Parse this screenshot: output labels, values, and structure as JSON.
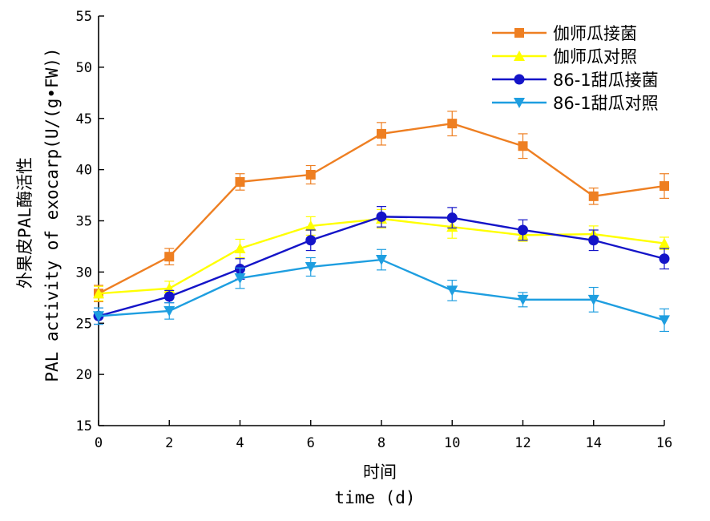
{
  "chart_data": {
    "type": "line",
    "xlabel_cn": "时间",
    "xlabel_en": "time (d)",
    "ylabel_cn": "外果皮PAL酶活性",
    "ylabel_en": "PAL activity of exocarp(U/(g•FW))",
    "x": [
      0,
      2,
      4,
      6,
      8,
      10,
      12,
      14,
      16
    ],
    "x_ticks": [
      0,
      2,
      4,
      6,
      8,
      10,
      12,
      14,
      16
    ],
    "y_ticks": [
      15,
      20,
      25,
      30,
      35,
      40,
      45,
      50,
      55
    ],
    "xlim": [
      0,
      16
    ],
    "ylim": [
      15,
      55
    ],
    "grid": false,
    "legend_position": "top-right",
    "series": [
      {
        "name": "伽师瓜接菌",
        "color": "#EE7F22",
        "marker": "square",
        "values": [
          27.9,
          31.5,
          38.8,
          39.5,
          43.5,
          44.5,
          42.3,
          37.4,
          38.4
        ],
        "errors": [
          0.8,
          0.8,
          0.8,
          0.9,
          1.1,
          1.2,
          1.2,
          0.8,
          1.2
        ]
      },
      {
        "name": "伽师瓜对照",
        "color": "#FFFF00",
        "marker": "triangle-up",
        "values": [
          27.9,
          28.4,
          32.3,
          34.5,
          35.2,
          34.4,
          33.6,
          33.7,
          32.8
        ],
        "errors": [
          0.7,
          0.7,
          0.9,
          0.9,
          0.9,
          1.1,
          0.6,
          0.8,
          0.6
        ]
      },
      {
        "name": "86-1甜瓜接菌",
        "color": "#1414C8",
        "marker": "circle",
        "values": [
          25.7,
          27.6,
          30.3,
          33.1,
          35.4,
          35.3,
          34.1,
          33.1,
          31.3
        ],
        "errors": [
          0.8,
          0.6,
          1.0,
          1.0,
          1.0,
          1.0,
          1.0,
          1.0,
          1.0
        ]
      },
      {
        "name": "86-1甜瓜对照",
        "color": "#1E9EE0",
        "marker": "triangle-down",
        "values": [
          25.7,
          26.2,
          29.4,
          30.5,
          31.2,
          28.2,
          27.3,
          27.3,
          25.3
        ],
        "errors": [
          0.8,
          0.8,
          1.0,
          0.9,
          1.0,
          1.0,
          0.7,
          1.2,
          1.1
        ]
      }
    ]
  }
}
